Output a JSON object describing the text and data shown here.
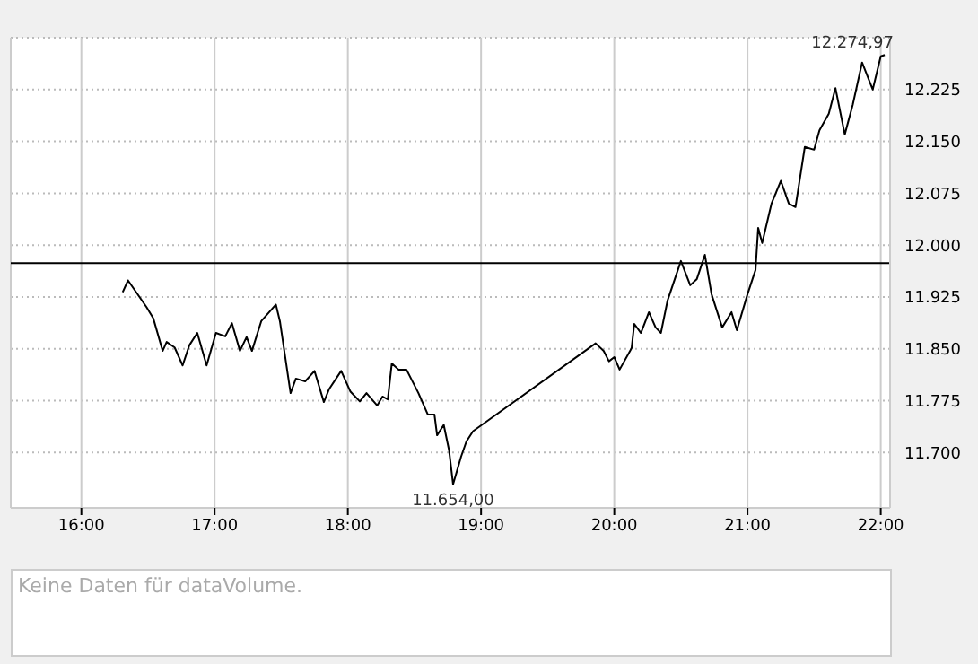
{
  "chart_data": {
    "type": "line",
    "x": [
      16.31,
      16.35,
      16.49,
      16.54,
      16.61,
      16.64,
      16.7,
      16.76,
      16.81,
      16.87,
      16.94,
      17.01,
      17.08,
      17.13,
      17.19,
      17.24,
      17.28,
      17.35,
      17.46,
      17.49,
      17.57,
      17.61,
      17.68,
      17.75,
      17.82,
      17.86,
      17.95,
      18.02,
      18.09,
      18.14,
      18.22,
      18.26,
      18.3,
      18.33,
      18.38,
      18.44,
      18.53,
      18.6,
      18.65,
      18.67,
      18.72,
      18.76,
      18.79,
      18.85,
      18.89,
      18.94,
      19.86,
      19.92,
      19.96,
      20.0,
      20.04,
      20.13,
      20.15,
      20.2,
      20.26,
      20.31,
      20.35,
      20.4,
      20.5,
      20.57,
      20.62,
      20.68,
      20.73,
      20.81,
      20.88,
      20.92,
      21.0,
      21.06,
      21.08,
      21.11,
      21.18,
      21.25,
      21.31,
      21.36,
      21.43,
      21.5,
      21.54,
      21.61,
      21.66,
      21.73,
      21.79,
      21.86,
      21.94,
      22.0,
      22.03
    ],
    "series": [
      {
        "color": "#000000",
        "values": [
          11932,
          11949,
          11910,
          11894,
          11847,
          11860,
          11852,
          11826,
          11855,
          11873,
          11826,
          11873,
          11868,
          11887,
          11847,
          11867,
          11847,
          11890,
          11914,
          11890,
          11786,
          11807,
          11803,
          11818,
          11773,
          11792,
          11818,
          11788,
          11774,
          11786,
          11768,
          11781,
          11777,
          11829,
          11820,
          11820,
          11786,
          11755,
          11755,
          11725,
          11740,
          11703,
          11654,
          11694,
          11716,
          11731,
          11858,
          11847,
          11832,
          11838,
          11820,
          11851,
          11886,
          11873,
          11903,
          11881,
          11873,
          11920,
          11977,
          11942,
          11951,
          11986,
          11929,
          11881,
          11903,
          11877,
          11929,
          11964,
          12025,
          12003,
          12060,
          12093,
          12060,
          12055,
          12142,
          12138,
          12166,
          12190,
          12227,
          12160,
          12203,
          12264,
          12225,
          12273,
          12274.97
        ]
      }
    ],
    "xlim": [
      15.47,
      22.07
    ],
    "xticks": [
      {
        "value": 16,
        "label": "16:00"
      },
      {
        "value": 17,
        "label": "17:00"
      },
      {
        "value": 18,
        "label": "18:00"
      },
      {
        "value": 19,
        "label": "19:00"
      },
      {
        "value": 20,
        "label": "20:00"
      },
      {
        "value": 21,
        "label": "21:00"
      },
      {
        "value": 22,
        "label": "22:00"
      }
    ],
    "ylim": [
      11620,
      12300
    ],
    "yticks": [
      {
        "value": 11700,
        "label": "11.700"
      },
      {
        "value": 11775,
        "label": "11.775"
      },
      {
        "value": 11850,
        "label": "11.850"
      },
      {
        "value": 11925,
        "label": "11.925"
      },
      {
        "value": 12000,
        "label": "12.000"
      },
      {
        "value": 12075,
        "label": "12.075"
      },
      {
        "value": 12150,
        "label": "12.150"
      },
      {
        "value": 12225,
        "label": "12.225"
      }
    ],
    "grid": true,
    "marker": "none",
    "line_style": "solid",
    "ref_lines": [
      {
        "axis": "y",
        "value": 11974,
        "color": "#000000"
      }
    ],
    "annotations": [
      {
        "text": "12.274,97",
        "x": 22.03,
        "y": 12274.97
      },
      {
        "text": "11.654,00",
        "x": 18.79,
        "y": 11654
      },
      "Keine Daten für dataVolume."
    ]
  }
}
